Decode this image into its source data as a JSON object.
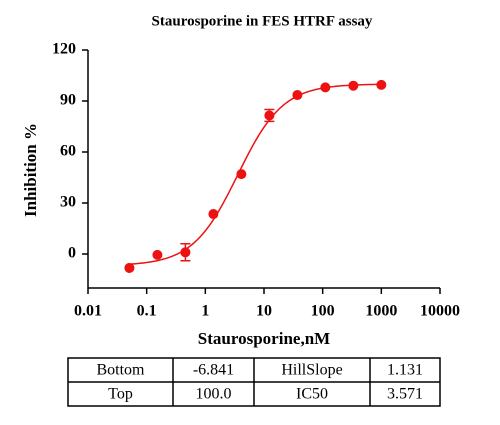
{
  "chart_data": {
    "type": "scatter",
    "title": "Staurosporine in FES HTRF assay",
    "x_label": "Staurosporine,nM",
    "y_label": "Inhibition %",
    "log_x": true,
    "color": "#ee1111",
    "x": [
      0.0508,
      0.1524,
      0.4572,
      1.372,
      4.115,
      12.35,
      37.04,
      111.1,
      333.3,
      1000
    ],
    "values": [
      -8.2,
      -0.5,
      1,
      23.5,
      47,
      81.5,
      93.5,
      98,
      99,
      99.5
    ],
    "errors": [
      null,
      null,
      5,
      null,
      null,
      3.5,
      null,
      null,
      null,
      null
    ],
    "xlim": [
      0.01,
      10000
    ],
    "xticks": [
      0.01,
      0.1,
      1,
      10,
      100,
      1000,
      10000
    ],
    "ylim": [
      -20,
      120
    ],
    "yticks": [
      0,
      30,
      60,
      90,
      120
    ]
  },
  "table": {
    "rows": [
      [
        "Bottom",
        {
          "value": -6.841,
          "label": "-6.841"
        },
        "HillSlope",
        {
          "value": 1.131,
          "label": "1.131"
        }
      ],
      [
        "Top",
        {
          "value": 100.0,
          "label": "100.0"
        },
        "IC50",
        {
          "value": 3.571,
          "label": "3.571"
        }
      ]
    ]
  }
}
